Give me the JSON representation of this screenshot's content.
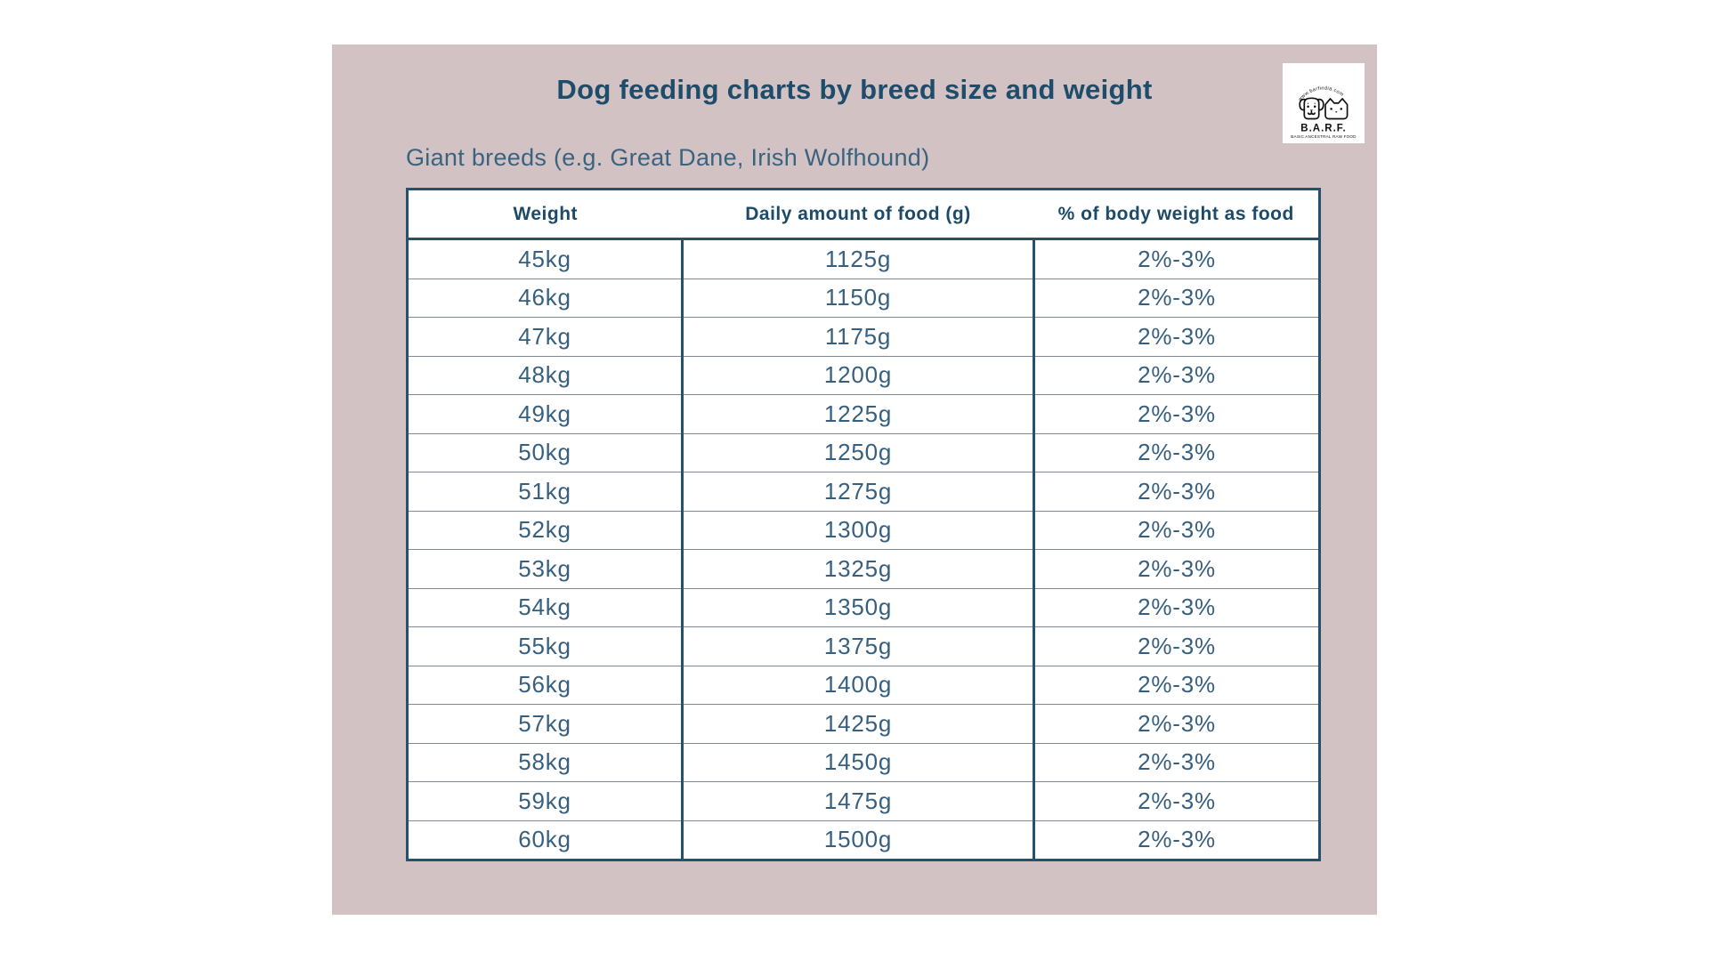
{
  "header": {
    "title": "Dog feeding charts by breed size and weight",
    "subtitle": "Giant breeds (e.g. Great Dane, Irish Wolfhound)"
  },
  "logo": {
    "brand": "B.A.R.F.",
    "tagline": "BASIC ANCESTRAL RAW FOOD",
    "website": "www.barfindia.com"
  },
  "colors": {
    "panel_background": "#d3c2c3",
    "page_background": "#ffffff",
    "title_text": "#1e4c6b",
    "body_text": "#376080",
    "table_border": "#25516f",
    "row_divider": "#7d8994",
    "logo_ink": "#111111"
  },
  "chart_data": {
    "type": "table",
    "title": "Dog feeding charts by breed size and weight",
    "subtitle": "Giant breeds (e.g. Great Dane, Irish Wolfhound)",
    "columns": [
      "Weight",
      "Daily amount of food (g)",
      "% of body weight as food"
    ],
    "rows": [
      [
        "45kg",
        "1125g",
        "2%-3%"
      ],
      [
        "46kg",
        "1150g",
        "2%-3%"
      ],
      [
        "47kg",
        "1175g",
        "2%-3%"
      ],
      [
        "48kg",
        "1200g",
        "2%-3%"
      ],
      [
        "49kg",
        "1225g",
        "2%-3%"
      ],
      [
        "50kg",
        "1250g",
        "2%-3%"
      ],
      [
        "51kg",
        "1275g",
        "2%-3%"
      ],
      [
        "52kg",
        "1300g",
        "2%-3%"
      ],
      [
        "53kg",
        "1325g",
        "2%-3%"
      ],
      [
        "54kg",
        "1350g",
        "2%-3%"
      ],
      [
        "55kg",
        "1375g",
        "2%-3%"
      ],
      [
        "56kg",
        "1400g",
        "2%-3%"
      ],
      [
        "57kg",
        "1425g",
        "2%-3%"
      ],
      [
        "58kg",
        "1450g",
        "2%-3%"
      ],
      [
        "59kg",
        "1475g",
        "2%-3%"
      ],
      [
        "60kg",
        "1500g",
        "2%-3%"
      ]
    ]
  }
}
